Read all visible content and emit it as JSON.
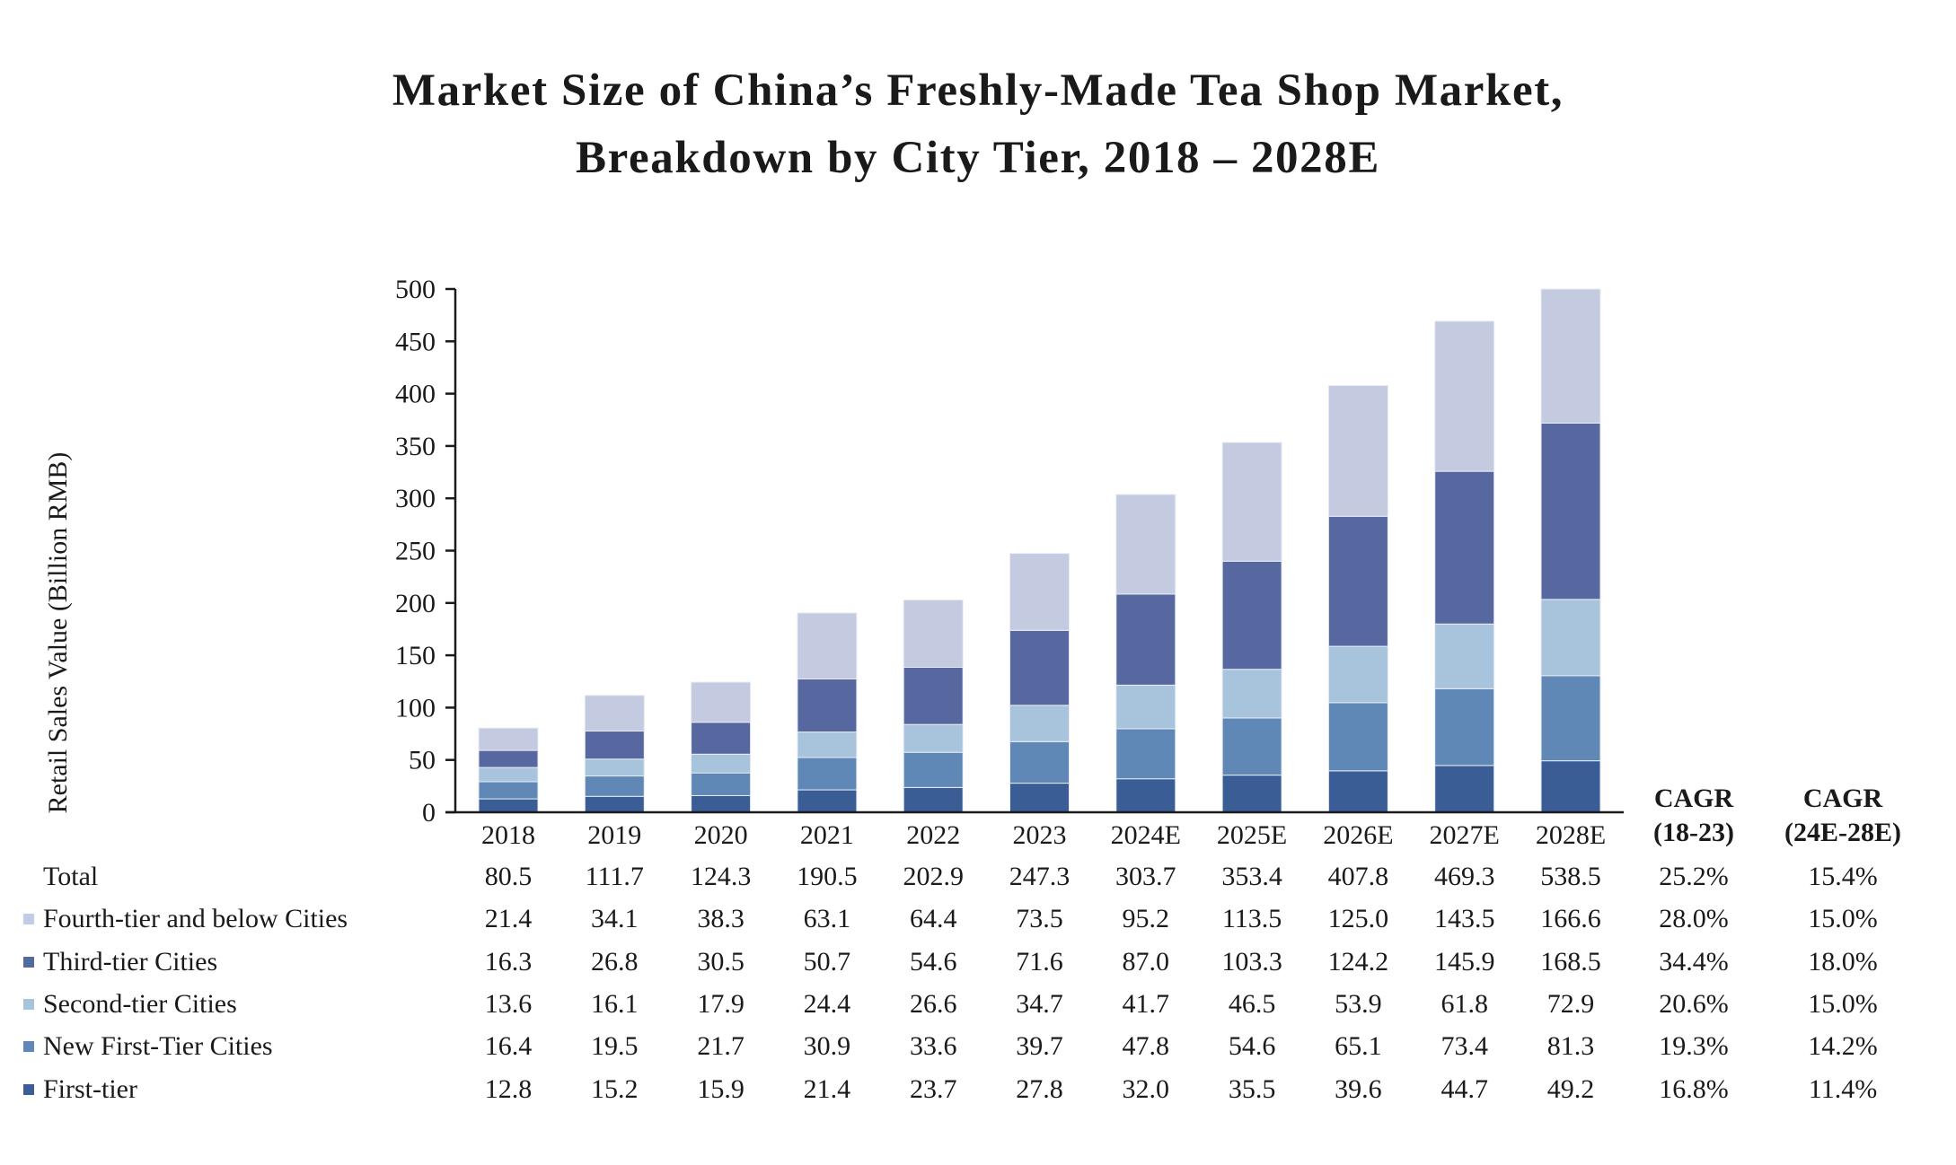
{
  "title": {
    "line1": "Market Size of China’s Freshly-Made Tea Shop Market,",
    "line2": "Breakdown by City Tier, 2018 – 2028E"
  },
  "chart_data": {
    "type": "bar",
    "stacked": true,
    "title": "Market Size of China’s Freshly-Made Tea Shop Market, Breakdown by City Tier, 2018 – 2028E",
    "xlabel": "",
    "ylabel": "Retail Sales Value (Billion RMB)",
    "ylim": [
      0,
      500
    ],
    "yticks": [
      0,
      50,
      100,
      150,
      200,
      250,
      300,
      350,
      400,
      450,
      500
    ],
    "grid": false,
    "legend_placement": "bottom-left (data table)",
    "categories": [
      "2018",
      "2019",
      "2020",
      "2021",
      "2022",
      "2023",
      "2024E",
      "2025E",
      "2026E",
      "2027E",
      "2028E"
    ],
    "series": [
      {
        "name": "First-tier",
        "color": "#3A5D96",
        "values": [
          12.8,
          15.2,
          15.9,
          21.4,
          23.7,
          27.8,
          32.0,
          35.5,
          39.6,
          44.7,
          49.2
        ],
        "display": [
          "12.8",
          "15.2",
          "15.9",
          "21.4",
          "23.7",
          "27.8",
          "32.0",
          "35.5",
          "39.6",
          "44.7",
          "49.2"
        ],
        "cagr_18_23": "16.8%",
        "cagr_24e_28e": "11.4%"
      },
      {
        "name": "New First-Tier Cities",
        "color": "#5F88B6",
        "values": [
          16.4,
          19.5,
          21.7,
          30.9,
          33.6,
          39.7,
          47.8,
          54.6,
          65.1,
          73.4,
          81.3
        ],
        "display": [
          "16.4",
          "19.5",
          "21.7",
          "30.9",
          "33.6",
          "39.7",
          "47.8",
          "54.6",
          "65.1",
          "73.4",
          "81.3"
        ],
        "cagr_18_23": "19.3%",
        "cagr_24e_28e": "14.2%"
      },
      {
        "name": "Second-tier Cities",
        "color": "#A8C3DC",
        "values": [
          13.6,
          16.1,
          17.9,
          24.4,
          26.6,
          34.7,
          41.7,
          46.5,
          53.9,
          61.8,
          72.9
        ],
        "display": [
          "13.6",
          "16.1",
          "17.9",
          "24.4",
          "26.6",
          "34.7",
          "41.7",
          "46.5",
          "53.9",
          "61.8",
          "72.9"
        ],
        "cagr_18_23": "20.6%",
        "cagr_24e_28e": "15.0%"
      },
      {
        "name": "Third-tier Cities",
        "color": "#5767A0",
        "values": [
          16.3,
          26.8,
          30.5,
          50.7,
          54.6,
          71.6,
          87.0,
          103.3,
          124.2,
          145.9,
          168.5
        ],
        "display": [
          "16.3",
          "26.8",
          "30.5",
          "50.7",
          "54.6",
          "71.6",
          "87.0",
          "103.3",
          "124.2",
          "145.9",
          "168.5"
        ],
        "cagr_18_23": "34.4%",
        "cagr_24e_28e": "18.0%"
      },
      {
        "name": "Fourth-tier and below Cities",
        "color": "#C4CADF",
        "values": [
          21.4,
          34.1,
          38.3,
          63.1,
          64.4,
          73.5,
          95.2,
          113.5,
          125.0,
          143.5,
          166.6
        ],
        "display": [
          "21.4",
          "34.1",
          "38.3",
          "63.1",
          "64.4",
          "73.5",
          "95.2",
          "113.5",
          "125.0",
          "143.5",
          "166.6"
        ],
        "cagr_18_23": "28.0%",
        "cagr_24e_28e": "15.0%"
      }
    ],
    "total": {
      "name": "Total",
      "values": [
        80.5,
        111.7,
        124.3,
        190.5,
        202.9,
        247.3,
        303.7,
        353.4,
        407.8,
        469.3,
        538.5
      ],
      "display": [
        "80.5",
        "111.7",
        "124.3",
        "190.5",
        "202.9",
        "247.3",
        "303.7",
        "353.4",
        "407.8",
        "469.3",
        "538.5"
      ],
      "cagr_18_23": "25.2%",
      "cagr_24e_28e": "15.4%"
    },
    "cagr_headers": [
      {
        "line1": "CAGR",
        "line2": "(18-23)"
      },
      {
        "line1": "CAGR",
        "line2": "(24E-28E)"
      }
    ],
    "table_row_order": [
      "total",
      "Fourth-tier and below Cities",
      "Third-tier Cities",
      "Second-tier Cities",
      "New First-Tier Cities",
      "First-tier"
    ]
  }
}
